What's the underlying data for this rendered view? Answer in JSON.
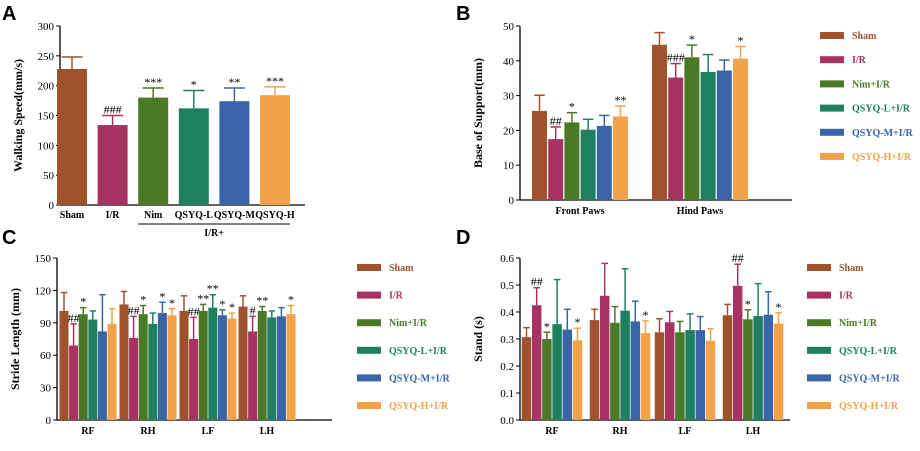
{
  "colors": {
    "sham": "#a0522d",
    "ir": "#a83262",
    "nim": "#4a7a27",
    "qsyql": "#1f8060",
    "qsyqm": "#3a64a8",
    "qsyqh": "#f4a24a"
  },
  "chart_data": [
    {
      "panel": "A",
      "type": "bar",
      "title": "",
      "ylabel": "Walking Speed(mm/s)",
      "xlabel": "",
      "ylim": [
        0,
        300
      ],
      "yticks": [
        0,
        50,
        100,
        150,
        200,
        250,
        300
      ],
      "categories": [
        "Sham",
        "I/R",
        "Nim",
        "QSYQ-L",
        "QSYQ-M",
        "QSYQ-H"
      ],
      "values": [
        228,
        134,
        180,
        162,
        174,
        184
      ],
      "errors": [
        20,
        16,
        16,
        30,
        22,
        14
      ],
      "annotations": [
        "",
        "###",
        "***",
        "*",
        "**",
        "***"
      ],
      "group_label": "I/R+",
      "series_colors": [
        "sham",
        "ir",
        "nim",
        "qsyql",
        "qsyqm",
        "qsyqh"
      ]
    },
    {
      "panel": "B",
      "type": "bar",
      "ylabel": "Base of Support(mm)",
      "ylim": [
        0,
        50
      ],
      "yticks": [
        0,
        10,
        20,
        30,
        40,
        50
      ],
      "categories": [
        "Front Paws",
        "Hind Paws"
      ],
      "series": [
        {
          "name": "Sham",
          "color": "sham",
          "values": [
            25.6,
            44.6
          ],
          "errors": [
            4.5,
            3.5
          ],
          "annotations": [
            "",
            ""
          ]
        },
        {
          "name": "I/R",
          "color": "ir",
          "values": [
            17.5,
            35.2
          ],
          "errors": [
            3.5,
            4.0
          ],
          "annotations": [
            "##",
            "###"
          ]
        },
        {
          "name": "Nim+I/R",
          "color": "nim",
          "values": [
            22.3,
            41.0
          ],
          "errors": [
            2.8,
            3.5
          ],
          "annotations": [
            "*",
            "*"
          ]
        },
        {
          "name": "QSYQ-L+I/R",
          "color": "qsyql",
          "values": [
            20.2,
            36.8
          ],
          "errors": [
            3.0,
            5.0
          ],
          "annotations": [
            "",
            ""
          ]
        },
        {
          "name": "QSYQ-M+I/R",
          "color": "qsyqm",
          "values": [
            21.3,
            37.2
          ],
          "errors": [
            3.0,
            3.0
          ],
          "annotations": [
            "",
            ""
          ]
        },
        {
          "name": "QSYQ-H+I/R",
          "color": "qsyqh",
          "values": [
            24.0,
            40.6
          ],
          "errors": [
            3.0,
            3.5
          ],
          "annotations": [
            "**",
            "*"
          ]
        }
      ]
    },
    {
      "panel": "C",
      "type": "bar",
      "ylabel": "Stride Length (mm)",
      "ylim": [
        0,
        150
      ],
      "yticks": [
        0,
        30,
        60,
        90,
        120,
        150
      ],
      "categories": [
        "RF",
        "RH",
        "LF",
        "LH"
      ],
      "series": [
        {
          "name": "Sham",
          "color": "sham",
          "values": [
            101,
            107,
            101,
            105
          ],
          "errors": [
            17,
            12,
            14,
            10
          ],
          "annotations": [
            "",
            "",
            "",
            ""
          ]
        },
        {
          "name": "I/R",
          "color": "ir",
          "values": [
            69,
            76,
            75,
            82
          ],
          "errors": [
            20,
            20,
            20,
            14
          ],
          "annotations": [
            "##",
            "##",
            "##",
            "#"
          ]
        },
        {
          "name": "Nim+I/R",
          "color": "nim",
          "values": [
            98,
            98,
            101,
            101
          ],
          "errors": [
            6,
            8,
            6,
            4
          ],
          "annotations": [
            "*",
            "*",
            "**",
            "**"
          ]
        },
        {
          "name": "QSYQ-L+I/R",
          "color": "qsyql",
          "values": [
            93,
            89,
            104,
            95
          ],
          "errors": [
            8,
            10,
            12,
            6
          ],
          "annotations": [
            "",
            "",
            "**",
            ""
          ]
        },
        {
          "name": "QSYQ-M+I/R",
          "color": "qsyqm",
          "values": [
            82,
            99,
            97,
            96
          ],
          "errors": [
            34,
            10,
            5,
            8
          ],
          "annotations": [
            "",
            "*",
            "*",
            ""
          ]
        },
        {
          "name": "QSYQ-H+I/R",
          "color": "qsyqh",
          "values": [
            89,
            97,
            94,
            98
          ],
          "errors": [
            14,
            6,
            5,
            8
          ],
          "annotations": [
            "",
            "*",
            "*",
            "*"
          ]
        }
      ]
    },
    {
      "panel": "D",
      "type": "bar",
      "ylabel": "Stand (s)",
      "ylim": [
        0,
        0.6
      ],
      "yticks": [
        "0.0",
        "0.1",
        "0.2",
        "0.3",
        "0.4",
        "0.5",
        "0.6"
      ],
      "categories": [
        "RF",
        "RH",
        "LF",
        "LH"
      ],
      "series": [
        {
          "name": "Sham",
          "color": "sham",
          "values": [
            0.307,
            0.37,
            0.325,
            0.388
          ],
          "errors": [
            0.035,
            0.04,
            0.05,
            0.04
          ],
          "annotations": [
            "",
            "",
            "",
            ""
          ]
        },
        {
          "name": "I/R",
          "color": "ir",
          "values": [
            0.425,
            0.46,
            0.362,
            0.497
          ],
          "errors": [
            0.065,
            0.12,
            0.04,
            0.08
          ],
          "annotations": [
            "##",
            "",
            "",
            "##"
          ]
        },
        {
          "name": "Nim+I/R",
          "color": "nim",
          "values": [
            0.3,
            0.36,
            0.325,
            0.373
          ],
          "errors": [
            0.025,
            0.06,
            0.04,
            0.035
          ],
          "annotations": [
            "*",
            "",
            "",
            "*"
          ]
        },
        {
          "name": "QSYQ-L+I/R",
          "color": "qsyql",
          "values": [
            0.355,
            0.405,
            0.333,
            0.385
          ],
          "errors": [
            0.165,
            0.155,
            0.06,
            0.12
          ],
          "annotations": [
            "",
            "",
            "",
            ""
          ]
        },
        {
          "name": "QSYQ-M+I/R",
          "color": "qsyqm",
          "values": [
            0.335,
            0.365,
            0.333,
            0.39
          ],
          "errors": [
            0.075,
            0.075,
            0.05,
            0.085
          ],
          "annotations": [
            "",
            "",
            "",
            ""
          ]
        },
        {
          "name": "QSYQ-H+I/R",
          "color": "qsyqh",
          "values": [
            0.295,
            0.322,
            0.293,
            0.357
          ],
          "errors": [
            0.045,
            0.045,
            0.045,
            0.04
          ],
          "annotations": [
            "*",
            "*",
            "",
            "*"
          ]
        }
      ]
    }
  ]
}
